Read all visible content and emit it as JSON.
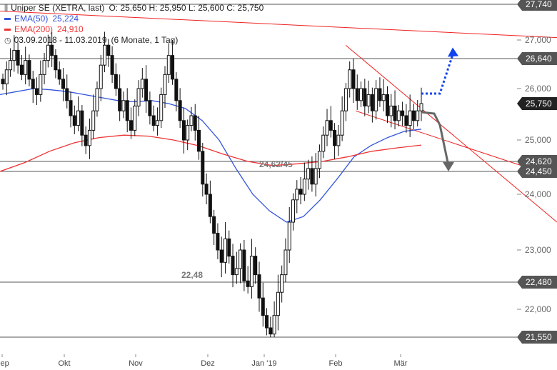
{
  "legend": {
    "instrument": "Uniper SE (XETRA, last)",
    "ohlc": "O: 25,650  H: 25,950  L: 25,600  C: 25,750",
    "ema50_label": "EMA(50)",
    "ema50_value": "25,224",
    "ema200_label": "EMA(200)",
    "ema200_value": "24,910",
    "period": "03.09.2018 - 11.03.2019",
    "interval": "(6 Monate, 1 Tag)"
  },
  "colors": {
    "ema50": "#3355dd",
    "ema200": "#ee3333",
    "candle": "#111111",
    "trendline": "#ee2222",
    "level_line": "#555555",
    "level_tag": "#555555",
    "price_tag": "#222222",
    "forecast_up": "#1144ee",
    "forecast_down": "#666666"
  },
  "chart_data": {
    "type": "candlestick",
    "y_axis_ticks": [
      "27,000",
      "26,000",
      "25,000",
      "24,000",
      "23,000",
      "22,000"
    ],
    "x_axis_ticks": [
      "Sep",
      "Okt",
      "Nov",
      "Dez",
      "Jan '19",
      "Feb",
      "Mär"
    ],
    "horizontal_levels": [
      {
        "label": "27,740",
        "value": 27.74
      },
      {
        "label": "26,640",
        "value": 26.64
      },
      {
        "label": "24,620",
        "value": 24.62
      },
      {
        "label": "24,450",
        "value": 24.45
      },
      {
        "label": "22,480",
        "value": 22.48
      },
      {
        "label": "21,550",
        "value": 21.55
      }
    ],
    "last_price": {
      "label": "25,750",
      "value": 25.75
    },
    "annotations": [
      {
        "text": "24,62/45",
        "value": 24.62
      },
      {
        "text": "22,48",
        "value": 22.48
      }
    ],
    "candles_daily_close": [
      26.1,
      26.4,
      26.6,
      26.8,
      26.5,
      26.3,
      26.6,
      26.2,
      26.0,
      25.9,
      26.3,
      26.6,
      26.9,
      26.7,
      26.4,
      26.2,
      26.0,
      25.8,
      25.5,
      25.3,
      25.6,
      25.1,
      24.9,
      25.2,
      25.6,
      26.0,
      26.5,
      26.9,
      26.7,
      26.3,
      26.0,
      25.6,
      25.8,
      25.4,
      25.2,
      25.7,
      26.0,
      26.2,
      25.8,
      25.5,
      25.3,
      25.4,
      25.9,
      26.3,
      26.7,
      26.2,
      25.8,
      25.4,
      25.0,
      25.3,
      25.5,
      25.2,
      24.8,
      24.2,
      24.0,
      23.6,
      23.3,
      23.0,
      22.8,
      23.2,
      22.9,
      22.6,
      22.7,
      23.0,
      22.5,
      22.4,
      22.9,
      22.6,
      22.2,
      21.9,
      21.7,
      21.6,
      21.9,
      22.3,
      22.6,
      23.0,
      23.5,
      23.9,
      24.1,
      24.0,
      24.3,
      24.5,
      24.2,
      24.5,
      24.8,
      25.1,
      25.4,
      25.2,
      24.9,
      25.1,
      25.6,
      26.0,
      26.4,
      26.0,
      25.8,
      26.0,
      25.7,
      25.9,
      25.6,
      26.0,
      25.8,
      25.9,
      25.5,
      25.7,
      25.4,
      25.6,
      25.5,
      25.3,
      25.6,
      25.4,
      25.6,
      25.75
    ],
    "ema50": [
      25.9,
      25.95,
      26.0,
      25.98,
      25.95,
      25.9,
      25.85,
      25.8,
      25.78,
      25.8,
      25.75,
      25.65,
      25.4,
      25.0,
      24.5,
      24.0,
      23.7,
      23.5,
      23.6,
      23.9,
      24.3,
      24.7,
      24.9,
      25.05,
      25.18,
      25.224
    ],
    "ema200": [
      24.45,
      24.6,
      24.8,
      24.95,
      25.05,
      25.1,
      25.08,
      25.0,
      24.9,
      24.75,
      24.62,
      24.55,
      24.58,
      24.62,
      24.7,
      24.8,
      24.86,
      24.91
    ],
    "forecast": {
      "up_target": 26.8,
      "down_target": 24.5
    }
  }
}
